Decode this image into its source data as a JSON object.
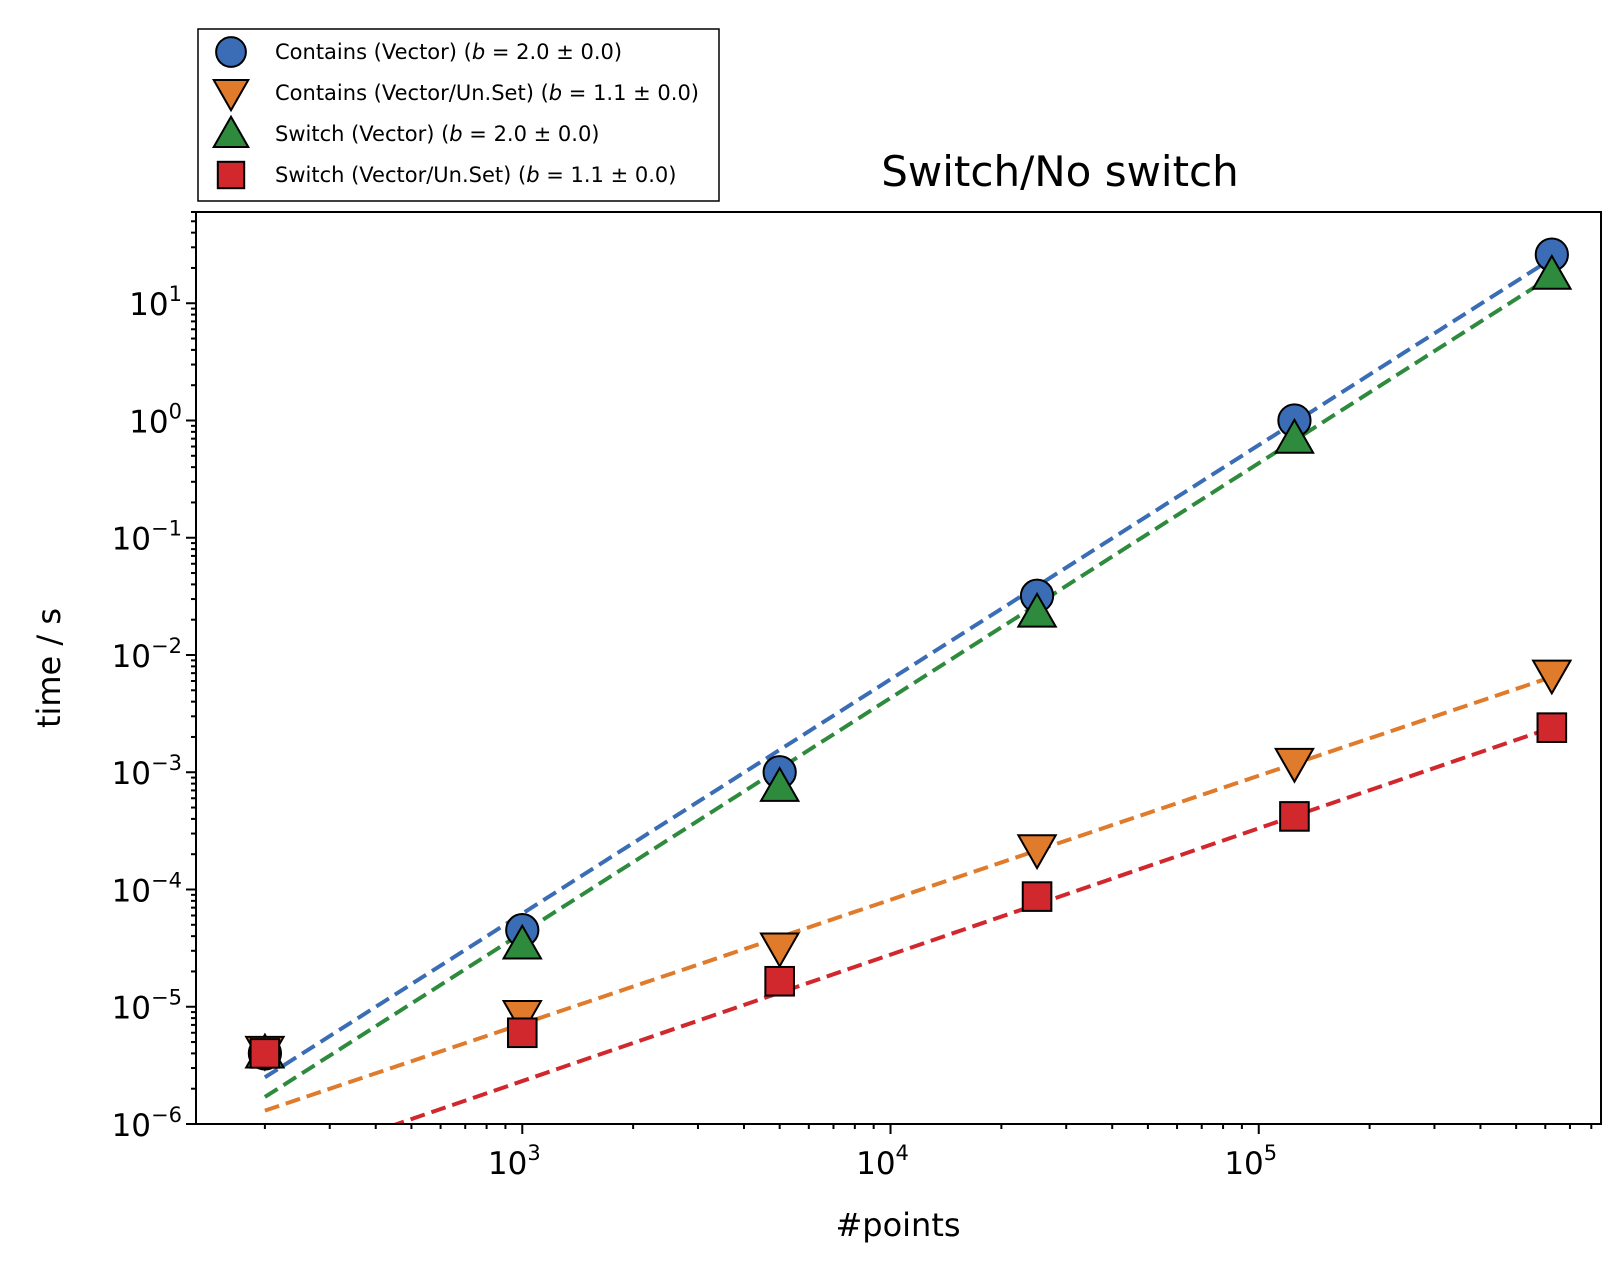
{
  "chart_data": {
    "type": "scatter",
    "title": "Switch/No switch",
    "xlabel": "#points",
    "ylabel": "time / s",
    "xscale": "log",
    "yscale": "log",
    "xlim": [
      130,
      850000
    ],
    "ylim": [
      1e-06,
      60
    ],
    "grid": false,
    "legend_position": "top-left, above axes",
    "x_ticks": [
      {
        "value": 1000,
        "base": "10",
        "exp": "3"
      },
      {
        "value": 10000,
        "base": "10",
        "exp": "4"
      },
      {
        "value": 100000,
        "base": "10",
        "exp": "5"
      }
    ],
    "y_ticks": [
      {
        "value": 10,
        "base": "10",
        "exp": "1"
      },
      {
        "value": 1,
        "base": "10",
        "exp": "0"
      },
      {
        "value": 0.1,
        "base": "10",
        "exp": "−1"
      },
      {
        "value": 0.01,
        "base": "10",
        "exp": "−2"
      },
      {
        "value": 0.001,
        "base": "10",
        "exp": "−3"
      },
      {
        "value": 0.0001,
        "base": "10",
        "exp": "−4"
      },
      {
        "value": 1e-05,
        "base": "10",
        "exp": "−5"
      },
      {
        "value": 1e-06,
        "base": "10",
        "exp": "−6"
      }
    ],
    "series": [
      {
        "name": "Contains (Vector)",
        "b": "2.0",
        "b_err": "0.0",
        "marker": "circle",
        "color": "#3a6db5",
        "x": [
          200,
          1000,
          5000,
          25000,
          125000,
          625000
        ],
        "y": [
          4e-06,
          4.5e-05,
          0.001,
          0.032,
          1.0,
          26
        ],
        "fit": {
          "x": [
            200,
            625000
          ],
          "y": [
            2.5e-06,
            24
          ]
        }
      },
      {
        "name": "Contains (Vector/Un.Set)",
        "b": "1.1",
        "b_err": "0.0",
        "marker": "triangle-down",
        "color": "#e07b2c",
        "x": [
          200,
          1000,
          5000,
          25000,
          125000,
          625000
        ],
        "y": [
          4.2e-06,
          8.5e-06,
          3.2e-05,
          0.00022,
          0.0012,
          0.0068
        ],
        "fit": {
          "x": [
            200,
            625000
          ],
          "y": [
            1.3e-06,
            0.0065
          ]
        }
      },
      {
        "name": "Switch (Vector)",
        "b": "2.0",
        "b_err": "0.0",
        "marker": "triangle-up",
        "color": "#2e8b3e",
        "x": [
          200,
          1000,
          5000,
          25000,
          125000,
          625000
        ],
        "y": [
          4e-06,
          3.4e-05,
          0.00075,
          0.023,
          0.7,
          17.5
        ],
        "fit": {
          "x": [
            200,
            625000
          ],
          "y": [
            1.7e-06,
            17
          ]
        }
      },
      {
        "name": "Switch (Vector/Un.Set)",
        "b": "1.1",
        "b_err": "0.0",
        "marker": "square",
        "color": "#d1282e",
        "x": [
          200,
          1000,
          5000,
          25000,
          125000,
          625000
        ],
        "y": [
          4e-06,
          6e-06,
          1.65e-05,
          8.7e-05,
          0.00042,
          0.0024
        ],
        "fit": {
          "x": [
            200,
            625000
          ],
          "y": [
            4.1e-07,
            0.0024
          ]
        }
      }
    ]
  }
}
